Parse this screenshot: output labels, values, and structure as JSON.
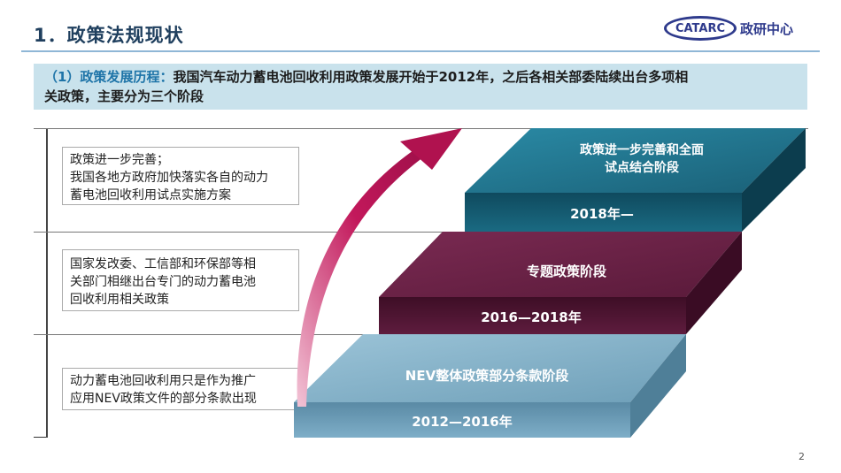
{
  "header": {
    "title": "1．政策法规现状",
    "logo_mark": "CATARC",
    "logo_text": "政研中心"
  },
  "banner": {
    "lead": "（1）政策发展历程：",
    "text_line1": "我国汽车动力蓄电池回收利用政策发展开始于2012年，之后各相关部委陆续出台多项相",
    "text_line2": "关政策，主要分为三个阶段"
  },
  "notes": [
    {
      "lines": [
        "政策进一步完善；",
        "我国各地方政府加快落实各自的动力",
        "蓄电池回收利用试点实施方案"
      ]
    },
    {
      "lines": [
        "国家发改委、工信部和环保部等相",
        "关部门相继出台专门的动力蓄电池",
        "回收利用相关政策"
      ]
    },
    {
      "lines": [
        "动力蓄电池回收利用只是作为推广",
        "应用NEV政策文件的部分条款出现"
      ]
    }
  ],
  "stages": [
    {
      "name_line1": "政策进一步完善和全面",
      "name_line2": "试点结合阶段",
      "period": "2018年—",
      "color": "#1d6f87"
    },
    {
      "name_line1": "专题政策阶段",
      "name_line2": "",
      "period": "2016—2018年",
      "color": "#6b1f45"
    },
    {
      "name_line1": "NEV整体政策部分条款阶段",
      "name_line2": "",
      "period": "2012—2016年",
      "color": "#7eaec8"
    }
  ],
  "colors": {
    "arrow": "#c2185b",
    "banner_bg": "#c9e2ec",
    "title": "#1f3f5e"
  },
  "page_number": "2"
}
